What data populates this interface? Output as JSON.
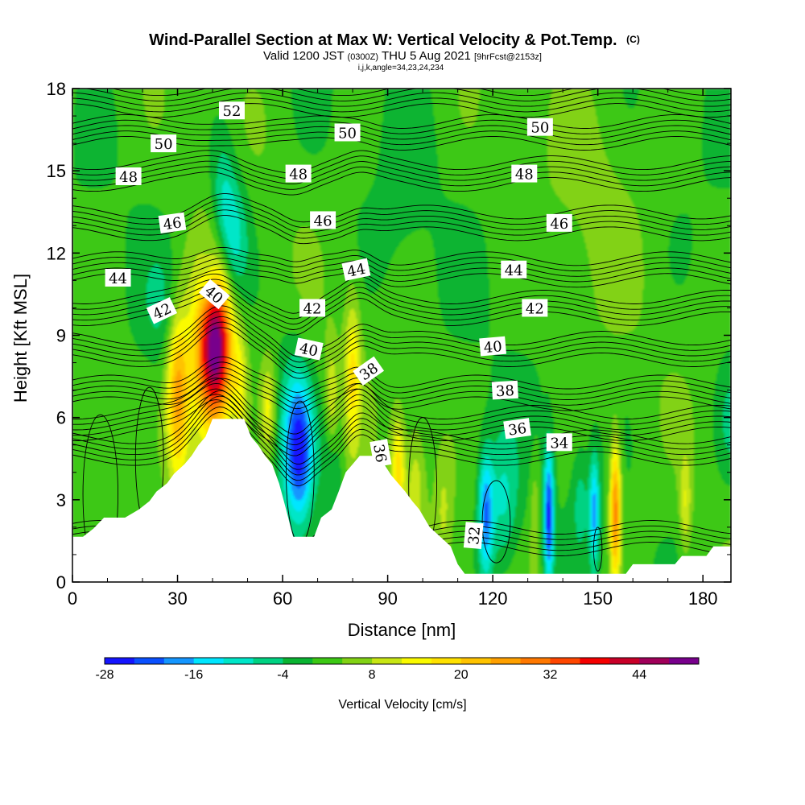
{
  "chart_data": {
    "type": "heatmap",
    "title": "Wind-Parallel Section at Max W: Vertical Velocity & Pot.Temp.",
    "title_mark": "(C)",
    "subtitle_parts": {
      "valid_prefix": "Valid 1200 JST",
      "utc": "(0300Z)",
      "date": "THU 5 Aug 2021",
      "forecast": "[9hrFcst@2153z]"
    },
    "indices": "i,j,k,angle=34,23,24,234",
    "xlabel": "Distance [nm]",
    "ylabel": "Height [Kft MSL]",
    "xlim": [
      0,
      188
    ],
    "ylim": [
      0,
      18
    ],
    "x_ticks": [
      {
        "value": 0,
        "label": "0"
      },
      {
        "value": 30,
        "label": "30"
      },
      {
        "value": 60,
        "label": "60"
      },
      {
        "value": 90,
        "label": "90"
      },
      {
        "value": 120,
        "label": "120"
      },
      {
        "value": 150,
        "label": "150"
      },
      {
        "value": 180,
        "label": "180"
      }
    ],
    "y_ticks": [
      {
        "value": 0,
        "label": "0"
      },
      {
        "value": 3,
        "label": "3"
      },
      {
        "value": 6,
        "label": "6"
      },
      {
        "value": 9,
        "label": "9"
      },
      {
        "value": 12,
        "label": "12"
      },
      {
        "value": 15,
        "label": "15"
      },
      {
        "value": 18,
        "label": "18"
      }
    ],
    "grid": false,
    "colorbar": {
      "title": "Vertical Velocity [cm/s]",
      "placement": "bottom",
      "min": -28,
      "step": 4,
      "colors": [
        "#1414ff",
        "#0a50ff",
        "#1496ff",
        "#00e6ff",
        "#00e6c8",
        "#00d282",
        "#0ab432",
        "#3cc814",
        "#82d214",
        "#c8e614",
        "#fafa00",
        "#ffe100",
        "#ffc300",
        "#ffa000",
        "#ff7800",
        "#ff4600",
        "#f50000",
        "#c80028",
        "#a0005a",
        "#78008c"
      ],
      "tick_labels": [
        {
          "value": -28,
          "label": "-28"
        },
        {
          "value": -16,
          "label": "-16"
        },
        {
          "value": -4,
          "label": "-4"
        },
        {
          "value": 8,
          "label": "8"
        },
        {
          "value": 20,
          "label": "20"
        },
        {
          "value": 32,
          "label": "32"
        },
        {
          "value": 44,
          "label": "44"
        }
      ]
    },
    "vertical_velocity_features": [
      {
        "x": 41,
        "y": 8.6,
        "sx": 3.2,
        "sy": 1.9,
        "amp": 44
      },
      {
        "x": 37,
        "y": 7.6,
        "sx": 4.5,
        "sy": 2.7,
        "amp": 14
      },
      {
        "x": 30,
        "y": 6.8,
        "sx": 2.2,
        "sy": 2.2,
        "amp": 22
      },
      {
        "x": 48,
        "y": 7.0,
        "sx": 1.6,
        "sy": 1.6,
        "amp": 10
      },
      {
        "x": 56,
        "y": 6.3,
        "sx": 1.6,
        "sy": 1.3,
        "amp": 12
      },
      {
        "x": 80,
        "y": 7.6,
        "sx": 1.6,
        "sy": 2.0,
        "amp": 14
      },
      {
        "x": 74,
        "y": 6.6,
        "sx": 1.3,
        "sy": 1.4,
        "amp": 10
      },
      {
        "x": 93,
        "y": 4.1,
        "sx": 1.4,
        "sy": 1.4,
        "amp": 16
      },
      {
        "x": 98,
        "y": 3.6,
        "sx": 1.8,
        "sy": 1.6,
        "amp": 8
      },
      {
        "x": 106,
        "y": 2.6,
        "sx": 1.8,
        "sy": 1.6,
        "amp": 6
      },
      {
        "x": 132,
        "y": 2.5,
        "sx": 1.0,
        "sy": 1.5,
        "amp": 6
      },
      {
        "x": 155,
        "y": 2.6,
        "sx": 1.1,
        "sy": 1.8,
        "amp": 28
      },
      {
        "x": 175,
        "y": 2.8,
        "sx": 1.2,
        "sy": 1.3,
        "amp": 10
      },
      {
        "x": 26,
        "y": 10.0,
        "sx": 4.0,
        "sy": 1.4,
        "amp": -5
      },
      {
        "x": 46,
        "y": 12.5,
        "sx": 3.0,
        "sy": 1.6,
        "amp": -12
      },
      {
        "x": 43,
        "y": 14.2,
        "sx": 2.4,
        "sy": 1.6,
        "amp": -8
      },
      {
        "x": 39,
        "y": 11.0,
        "sx": 2.0,
        "sy": 1.0,
        "amp": -8
      },
      {
        "x": 65,
        "y": 4.8,
        "sx": 2.7,
        "sy": 1.8,
        "amp": -22
      },
      {
        "x": 62,
        "y": 5.5,
        "sx": 3.5,
        "sy": 2.2,
        "amp": -8
      },
      {
        "x": 74,
        "y": 4.2,
        "sx": 2.2,
        "sy": 1.6,
        "amp": -6
      },
      {
        "x": 118,
        "y": 2.4,
        "sx": 1.5,
        "sy": 1.6,
        "amp": -20
      },
      {
        "x": 123,
        "y": 2.8,
        "sx": 3.2,
        "sy": 1.8,
        "amp": -10
      },
      {
        "x": 136,
        "y": 2.4,
        "sx": 1.0,
        "sy": 1.7,
        "amp": -26
      },
      {
        "x": 149,
        "y": 2.6,
        "sx": 1.0,
        "sy": 1.4,
        "amp": -18
      },
      {
        "x": 145,
        "y": 3.0,
        "sx": 1.6,
        "sy": 1.3,
        "amp": -6
      },
      {
        "x": 188,
        "y": 5.8,
        "sx": 3.0,
        "sy": 1.6,
        "amp": -6
      },
      {
        "x": 150,
        "y": 14.5,
        "sx": 9.0,
        "sy": 3.5,
        "amp": 3
      },
      {
        "x": 95,
        "y": 13.5,
        "sx": 6.0,
        "sy": 3.5,
        "amp": -2
      }
    ],
    "terrain": [
      [
        0,
        1.65
      ],
      [
        3,
        1.65
      ],
      [
        6,
        1.95
      ],
      [
        9,
        2.35
      ],
      [
        15,
        2.35
      ],
      [
        19,
        2.65
      ],
      [
        22,
        2.95
      ],
      [
        24,
        3.3
      ],
      [
        27,
        3.6
      ],
      [
        29,
        3.95
      ],
      [
        32,
        4.3
      ],
      [
        34,
        4.6
      ],
      [
        36,
        5.0
      ],
      [
        38,
        5.3
      ],
      [
        40,
        5.95
      ],
      [
        49,
        5.95
      ],
      [
        51,
        5.3
      ],
      [
        53,
        5.0
      ],
      [
        55,
        4.6
      ],
      [
        57,
        4.3
      ],
      [
        59,
        3.6
      ],
      [
        61,
        2.65
      ],
      [
        63,
        1.65
      ],
      [
        69,
        1.65
      ],
      [
        71,
        2.35
      ],
      [
        74,
        2.65
      ],
      [
        76,
        3.3
      ],
      [
        78,
        4.0
      ],
      [
        80,
        4.3
      ],
      [
        82,
        4.6
      ],
      [
        86,
        4.6
      ],
      [
        89,
        4.3
      ],
      [
        91,
        3.9
      ],
      [
        93,
        3.6
      ],
      [
        95,
        3.3
      ],
      [
        97,
        2.95
      ],
      [
        99,
        2.65
      ],
      [
        102,
        2.0
      ],
      [
        105,
        1.65
      ],
      [
        108,
        1.3
      ],
      [
        110,
        0.65
      ],
      [
        112,
        0.3
      ],
      [
        140,
        0.3
      ],
      [
        148,
        0.3
      ],
      [
        158,
        0.3
      ],
      [
        160,
        0.65
      ],
      [
        172,
        0.65
      ],
      [
        174,
        0.95
      ],
      [
        181,
        0.95
      ],
      [
        183,
        1.3
      ],
      [
        188,
        1.3
      ]
    ],
    "theta_contours": {
      "levels": [
        32,
        34,
        36,
        38,
        40,
        42,
        44,
        46,
        48,
        50,
        52
      ],
      "labels": [
        {
          "text": "52",
          "x": 45.5,
          "y": 17.2,
          "angle": 0
        },
        {
          "text": "50",
          "x": 26.0,
          "y": 16.0,
          "angle": 0
        },
        {
          "text": "50",
          "x": 78.5,
          "y": 16.4,
          "angle": 0
        },
        {
          "text": "50",
          "x": 133.5,
          "y": 16.6,
          "angle": 0
        },
        {
          "text": "48",
          "x": 16.0,
          "y": 14.8,
          "angle": 0
        },
        {
          "text": "48",
          "x": 64.5,
          "y": 14.9,
          "angle": 0
        },
        {
          "text": "48",
          "x": 129.0,
          "y": 14.9,
          "angle": 0
        },
        {
          "text": "46",
          "x": 28.5,
          "y": 13.1,
          "angle": -8
        },
        {
          "text": "46",
          "x": 71.5,
          "y": 13.2,
          "angle": 0
        },
        {
          "text": "46",
          "x": 139.0,
          "y": 13.1,
          "angle": 0
        },
        {
          "text": "44",
          "x": 13.0,
          "y": 11.1,
          "angle": 0
        },
        {
          "text": "44",
          "x": 81.0,
          "y": 11.4,
          "angle": -12
        },
        {
          "text": "44",
          "x": 126.0,
          "y": 11.4,
          "angle": 0
        },
        {
          "text": "42",
          "x": 25.5,
          "y": 9.9,
          "angle": -25
        },
        {
          "text": "42",
          "x": 68.5,
          "y": 10.0,
          "angle": 0
        },
        {
          "text": "42",
          "x": 132.0,
          "y": 10.0,
          "angle": 0
        },
        {
          "text": "40",
          "x": 40.5,
          "y": 10.5,
          "angle": 40
        },
        {
          "text": "40",
          "x": 67.5,
          "y": 8.5,
          "angle": 12
        },
        {
          "text": "40",
          "x": 120.0,
          "y": 8.6,
          "angle": -5
        },
        {
          "text": "38",
          "x": 84.5,
          "y": 7.7,
          "angle": -35
        },
        {
          "text": "38",
          "x": 123.5,
          "y": 7.0,
          "angle": -3
        },
        {
          "text": "36",
          "x": 127.0,
          "y": 5.6,
          "angle": -8
        },
        {
          "text": "36",
          "x": 88.0,
          "y": 4.7,
          "angle": 80
        },
        {
          "text": "34",
          "x": 139.0,
          "y": 5.1,
          "angle": 0
        },
        {
          "text": "32",
          "x": 114.5,
          "y": 1.7,
          "angle": -85
        }
      ]
    },
    "colors": {
      "background": "#ffffff",
      "terrain": "#ffffff",
      "contour": "#000000",
      "frame": "#000000"
    }
  }
}
